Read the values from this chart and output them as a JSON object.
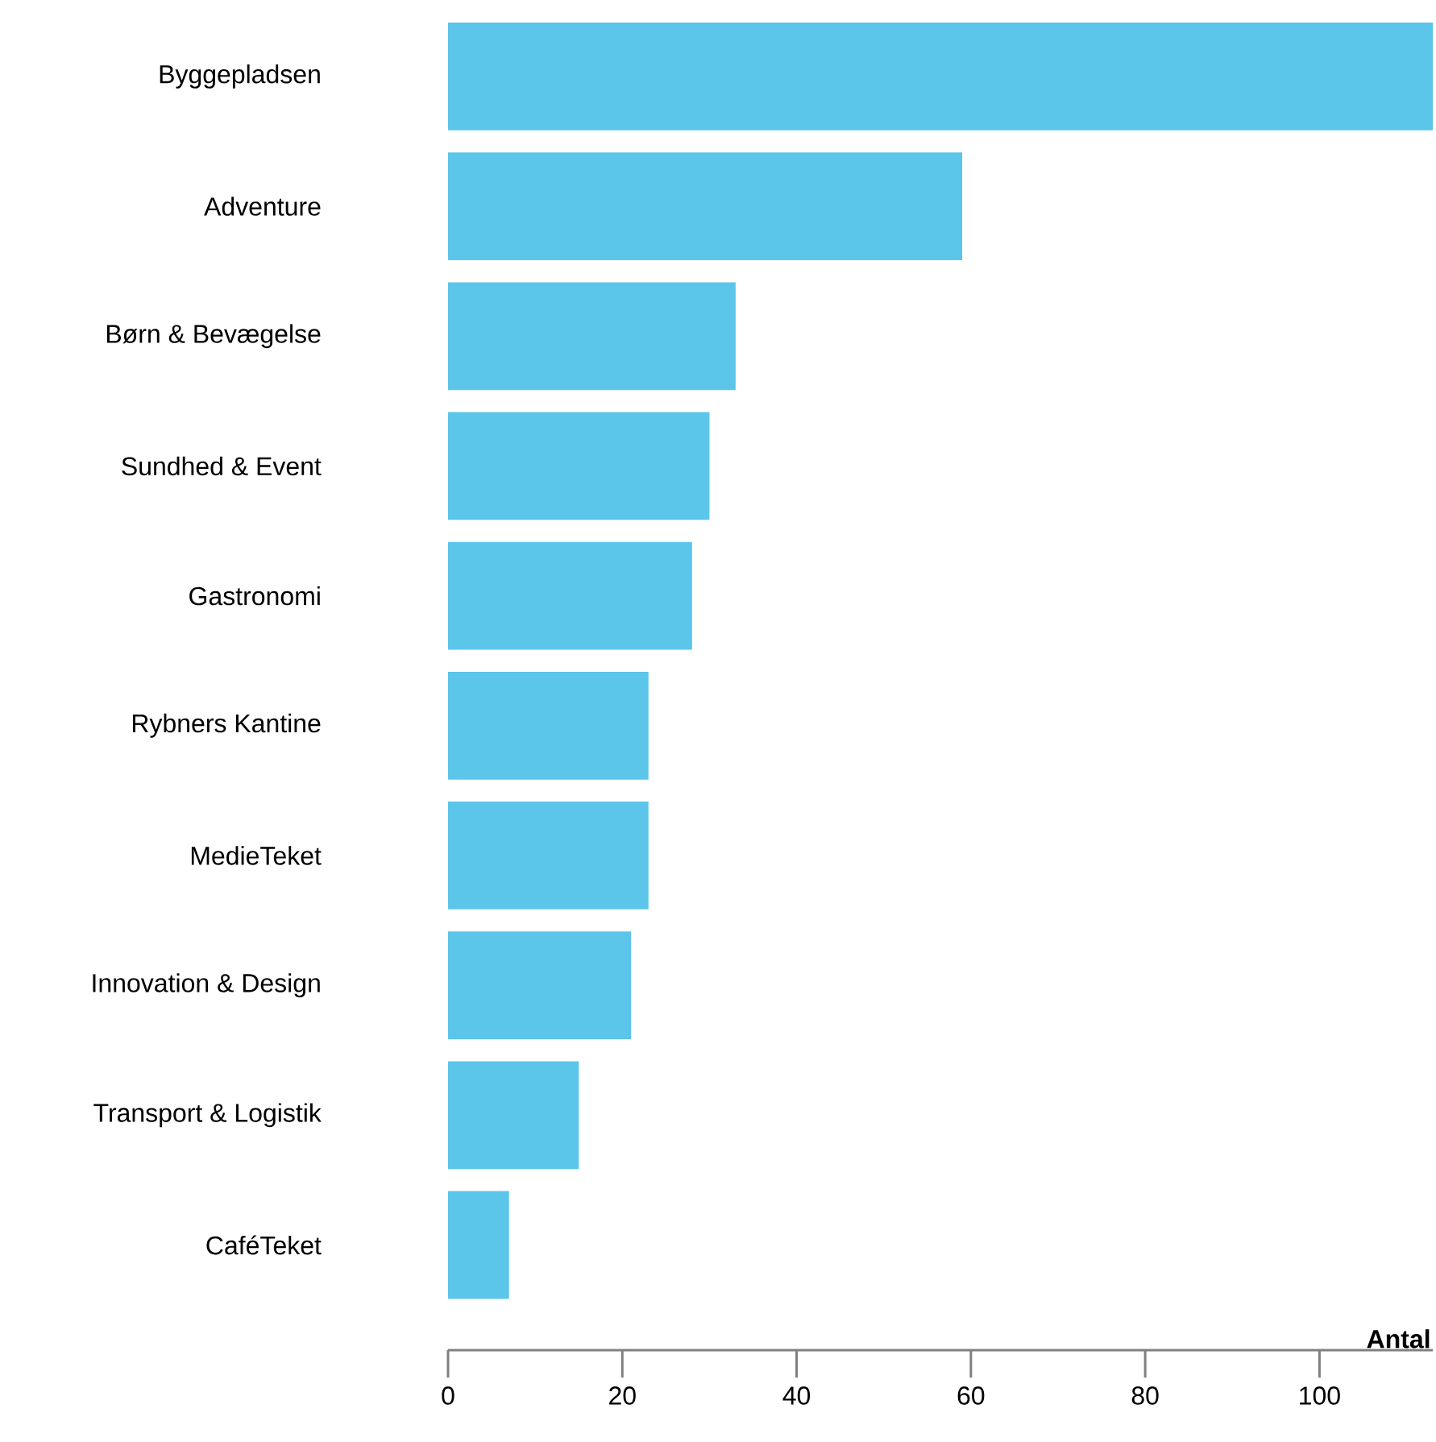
{
  "chart_data": {
    "type": "bar",
    "orientation": "horizontal",
    "xlabel": "Antal",
    "categories": [
      "Byggepladsen",
      "Adventure",
      "Børn & Bevægelse",
      "Sundhed & Event",
      "Gastronomi",
      "Rybners Kantine",
      "MedieTeket",
      "Innovation & Design",
      "Transport & Logistik",
      "CaféTeket"
    ],
    "values": [
      113,
      59,
      33,
      30,
      28,
      23,
      23,
      21,
      15,
      7
    ],
    "color": "#5bc5ea",
    "xlim": [
      0,
      113
    ],
    "xticks": [
      0,
      20,
      40,
      60,
      80,
      100
    ],
    "grid": false
  }
}
